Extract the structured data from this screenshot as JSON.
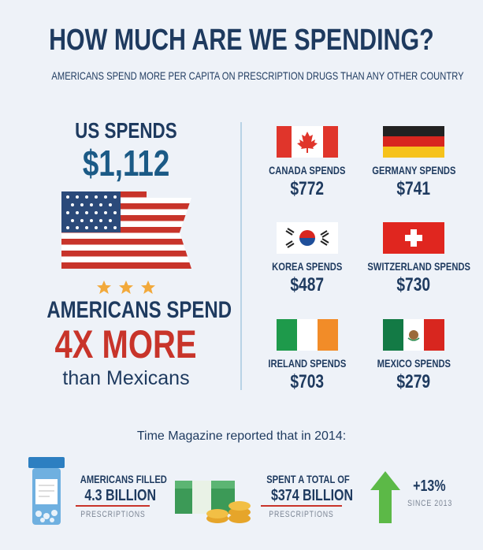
{
  "header": {
    "title": "HOW MUCH ARE WE SPENDING?",
    "subtitle": "AMERICANS SPEND MORE PER CAPITA ON PRESCRIPTION DRUGS THAN ANY OTHER COUNTRY"
  },
  "us": {
    "label": "US SPENDS",
    "amount": "$1,112"
  },
  "comparison": {
    "lead": "AMERICANS SPEND",
    "highlight": "4X MORE",
    "tail": "than Mexicans"
  },
  "countries": [
    {
      "label": "CANADA SPENDS",
      "amount": "$772"
    },
    {
      "label": "GERMANY SPENDS",
      "amount": "$741"
    },
    {
      "label": "KOREA SPENDS",
      "amount": "$487"
    },
    {
      "label": "SWITZERLAND SPENDS",
      "amount": "$730"
    },
    {
      "label": "IRELAND SPENDS",
      "amount": "$703"
    },
    {
      "label": "MEXICO SPENDS",
      "amount": "$279"
    }
  ],
  "footer": {
    "intro": "Time Magazine reported that in 2014:",
    "stats": [
      {
        "lead": "AMERICANS FILLED",
        "value": "4.3 BILLION",
        "note": "PRESCRIPTIONS"
      },
      {
        "lead": "SPENT A TOTAL OF",
        "value": "$374 BILLION",
        "note": "PRESCRIPTIONS"
      },
      {
        "value": "+13%",
        "note": "SINCE 2013"
      }
    ]
  }
}
